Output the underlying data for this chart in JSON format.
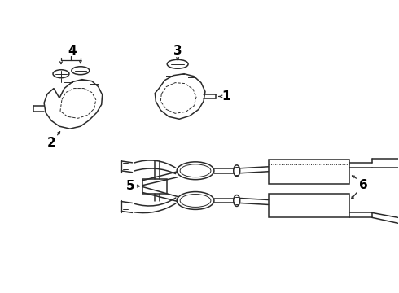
{
  "bg_color": "#ffffff",
  "line_color": "#2a2a2a",
  "label_color": "#000000",
  "fig_w": 4.9,
  "fig_h": 3.6,
  "dpi": 100
}
